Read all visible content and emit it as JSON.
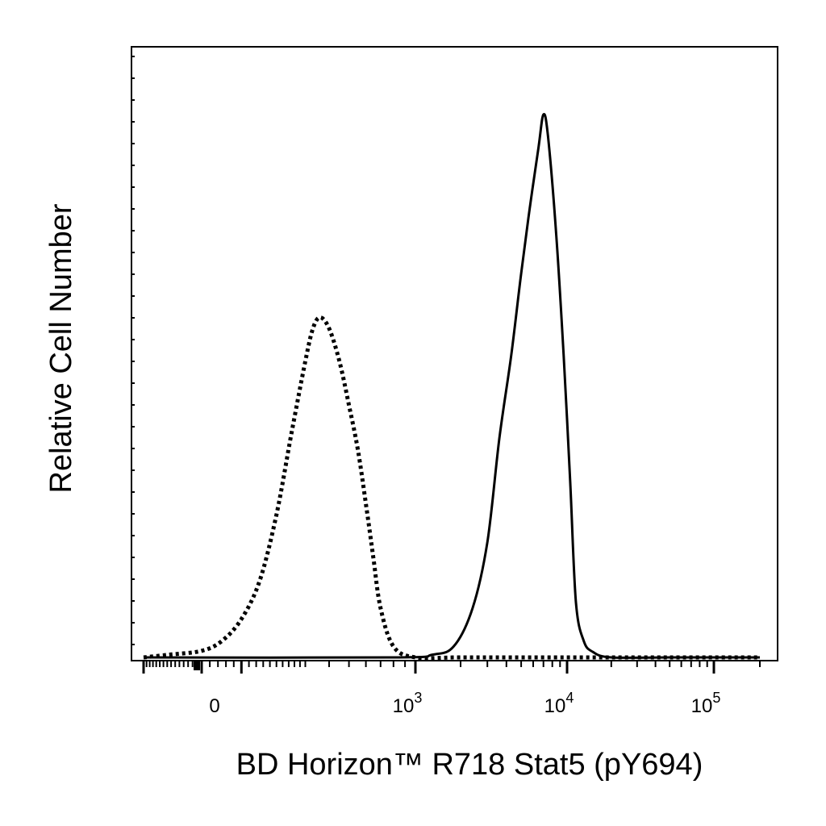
{
  "chart_data": {
    "type": "line",
    "xlabel": "BD Horizon™ R718  Stat5 (pY694)",
    "ylabel": "Relative Cell Number",
    "x_scale": "biexponential",
    "x_tick_labels": [
      {
        "value": 0,
        "label": "0",
        "exp": ""
      },
      {
        "value": 1000,
        "label": "10",
        "exp": "3"
      },
      {
        "value": 10000,
        "label": "10",
        "exp": "4"
      },
      {
        "value": 100000,
        "label": "10",
        "exp": "5"
      }
    ],
    "ylim": [
      0,
      1
    ],
    "grid": false,
    "legend": "none",
    "series": [
      {
        "style": "dotted",
        "color": "#000000",
        "points": [
          [
            -300,
            0
          ],
          [
            -150,
            0.005
          ],
          [
            0,
            0.012
          ],
          [
            50,
            0.03
          ],
          [
            100,
            0.07
          ],
          [
            150,
            0.14
          ],
          [
            200,
            0.26
          ],
          [
            250,
            0.41
          ],
          [
            300,
            0.54
          ],
          [
            330,
            0.6
          ],
          [
            360,
            0.62
          ],
          [
            400,
            0.6
          ],
          [
            450,
            0.54
          ],
          [
            500,
            0.46
          ],
          [
            550,
            0.38
          ],
          [
            600,
            0.28
          ],
          [
            650,
            0.18
          ],
          [
            700,
            0.09
          ],
          [
            800,
            0.02
          ],
          [
            1000,
            0.0
          ],
          [
            2000,
            0.0
          ],
          [
            10000,
            0.0
          ],
          [
            50000,
            0.0
          ],
          [
            160000,
            0.0
          ]
        ]
      },
      {
        "style": "solid",
        "color": "#000000",
        "points": [
          [
            -300,
            0
          ],
          [
            800,
            0
          ],
          [
            1300,
            0.005
          ],
          [
            1800,
            0.02
          ],
          [
            2400,
            0.09
          ],
          [
            3000,
            0.21
          ],
          [
            3600,
            0.4
          ],
          [
            4300,
            0.55
          ],
          [
            5000,
            0.7
          ],
          [
            5700,
            0.82
          ],
          [
            6500,
            0.93
          ],
          [
            7000,
            0.99
          ],
          [
            7500,
            0.95
          ],
          [
            8500,
            0.77
          ],
          [
            9500,
            0.55
          ],
          [
            10500,
            0.32
          ],
          [
            11500,
            0.1
          ],
          [
            13000,
            0.03
          ],
          [
            15000,
            0.01
          ],
          [
            20000,
            0.0
          ],
          [
            50000,
            0.0
          ],
          [
            160000,
            0.0
          ]
        ]
      }
    ]
  }
}
